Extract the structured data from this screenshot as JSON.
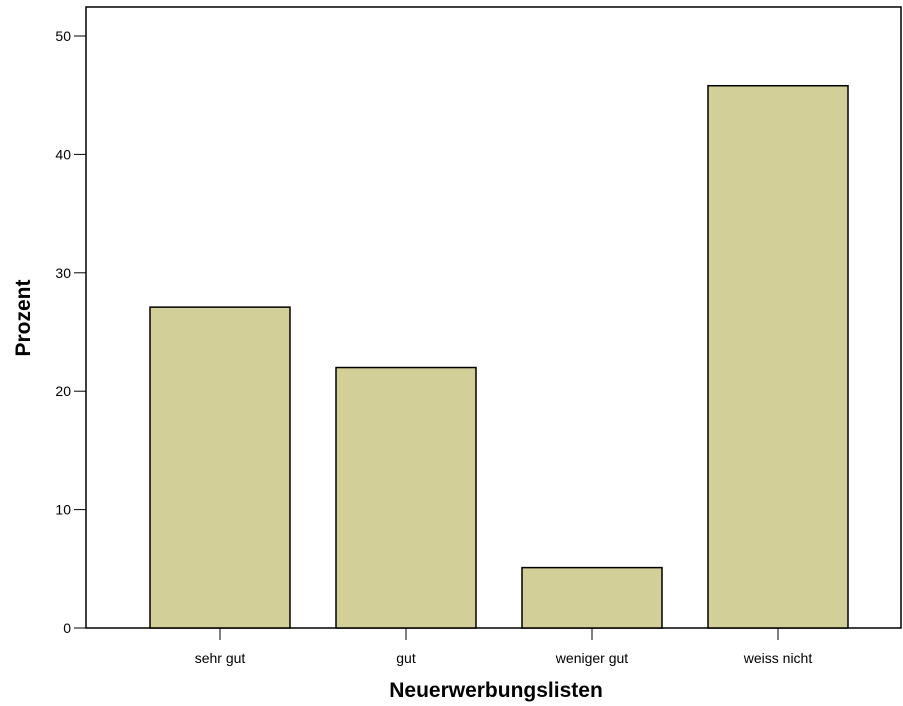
{
  "chart_data": {
    "type": "bar",
    "title": "",
    "xlabel": "Neuerwerbungslisten",
    "ylabel": "Prozent",
    "categories": [
      "sehr gut",
      "gut",
      "weniger gut",
      "weiss nicht"
    ],
    "values": [
      27.1,
      22.0,
      5.1,
      45.8
    ],
    "ylim": [
      0,
      52.5
    ],
    "yticks": [
      0,
      10,
      20,
      30,
      40,
      50
    ],
    "grid": false,
    "legend": "none",
    "bar_color": "#d3cf98",
    "bar_edge_color": "#000000"
  }
}
